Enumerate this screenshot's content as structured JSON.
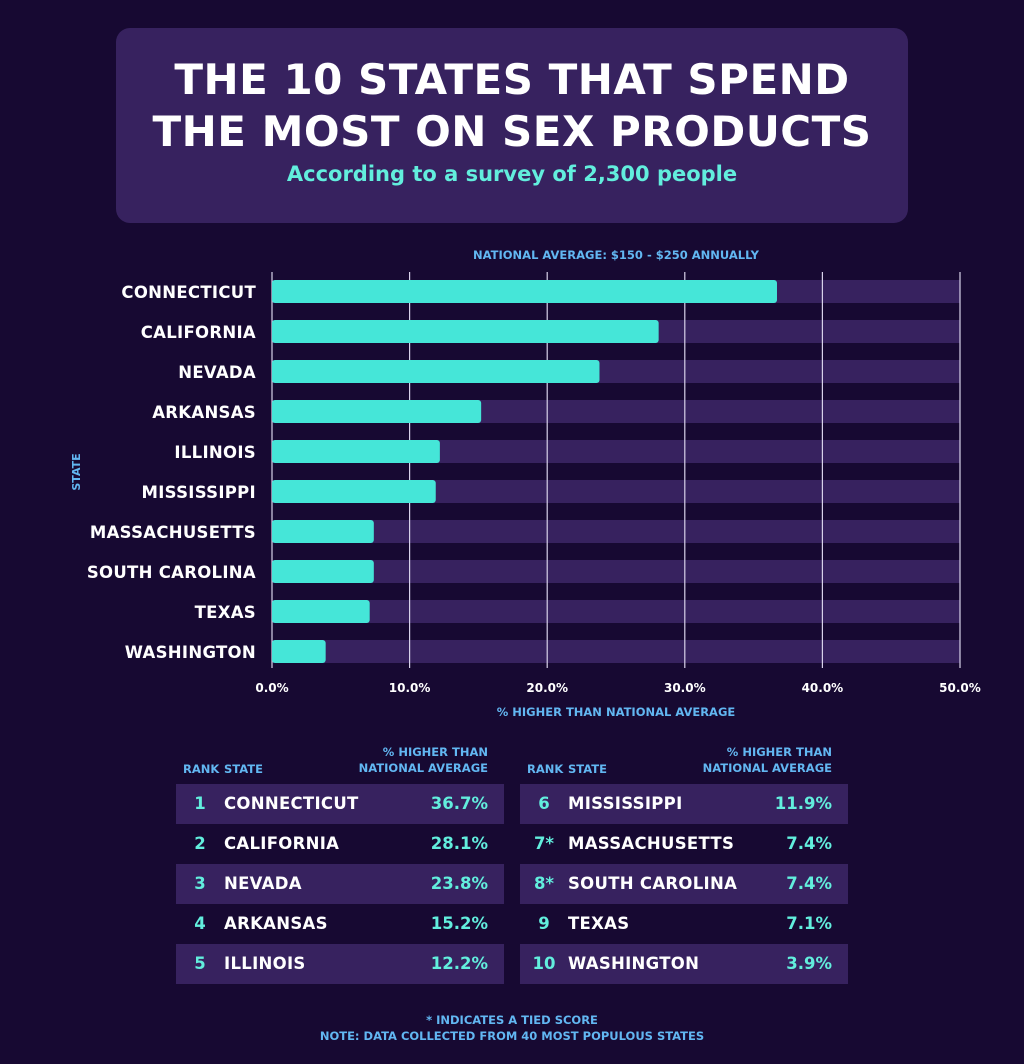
{
  "header": {
    "title_line1": "THE 10 STATES THAT SPEND",
    "title_line2": "THE MOST ON SEX PRODUCTS",
    "subtitle": "According to a survey of 2,300 people"
  },
  "colors": {
    "background": "#170932",
    "panel": "#37225f",
    "bar": "#45e6d8",
    "track": "#37225f",
    "accent_text": "#62eedd",
    "label_blue": "#62b7f2"
  },
  "chart_data": {
    "type": "bar",
    "orientation": "horizontal",
    "title": "NATIONAL AVERAGE: $150 - $250 ANNUALLY",
    "xlabel": "% HIGHER THAN NATIONAL AVERAGE",
    "ylabel": "STATE",
    "categories": [
      "CONNECTICUT",
      "CALIFORNIA",
      "NEVADA",
      "ARKANSAS",
      "ILLINOIS",
      "MISSISSIPPI",
      "MASSACHUSETTS",
      "SOUTH CAROLINA",
      "TEXAS",
      "WASHINGTON"
    ],
    "values": [
      36.7,
      28.1,
      23.8,
      15.2,
      12.2,
      11.9,
      7.4,
      7.4,
      7.1,
      3.9
    ],
    "xlim": [
      0,
      50
    ],
    "xticks": [
      0,
      10,
      20,
      30,
      40,
      50
    ],
    "xtick_labels": [
      "0.0%",
      "10.0%",
      "20.0%",
      "30.0%",
      "40.0%",
      "50.0%"
    ],
    "grid": true
  },
  "table": {
    "col_rank": "RANK",
    "col_state": "STATE",
    "col_pct_line1": "% HIGHER THAN",
    "col_pct_line2": "NATIONAL AVERAGE",
    "left": [
      {
        "rank": "1",
        "state": "CONNECTICUT",
        "pct": "36.7%"
      },
      {
        "rank": "2",
        "state": "CALIFORNIA",
        "pct": "28.1%"
      },
      {
        "rank": "3",
        "state": "NEVADA",
        "pct": "23.8%"
      },
      {
        "rank": "4",
        "state": "ARKANSAS",
        "pct": "15.2%"
      },
      {
        "rank": "5",
        "state": "ILLINOIS",
        "pct": "12.2%"
      }
    ],
    "right": [
      {
        "rank": "6",
        "state": "MISSISSIPPI",
        "pct": "11.9%"
      },
      {
        "rank": "7*",
        "state": "MASSACHUSETTS",
        "pct": "7.4%"
      },
      {
        "rank": "8*",
        "state": "SOUTH CAROLINA",
        "pct": "7.4%"
      },
      {
        "rank": "9",
        "state": "TEXAS",
        "pct": "7.1%"
      },
      {
        "rank": "10",
        "state": "WASHINGTON",
        "pct": "3.9%"
      }
    ]
  },
  "footnotes": {
    "line1": "* INDICATES A TIED SCORE",
    "line2": "NOTE: DATA COLLECTED FROM 40 MOST POPULOUS STATES"
  }
}
